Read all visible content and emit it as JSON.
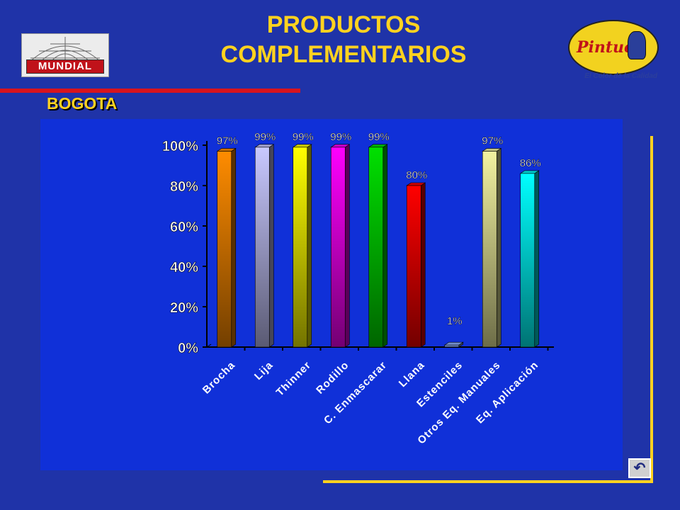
{
  "header": {
    "title_line1": "PRODUCTOS",
    "title_line2": "COMPLEMENTARIOS",
    "subtitle": "BOGOTA"
  },
  "logos": {
    "left": "MUNDIAL",
    "right": "Pintuco",
    "right_slogan": "El Color de la Calidad"
  },
  "nav": {
    "return_icon": "return-arrow-icon"
  },
  "colors": {
    "background": "#1f33a8",
    "panel": "#1030d8",
    "title": "#ffd21f",
    "accent_red": "#d8141e"
  },
  "chart_data": {
    "type": "bar",
    "categories": [
      "Brocha",
      "Lija",
      "Thinner",
      "Rodillo",
      "C. Enmascarar",
      "Llana",
      "Estenciles",
      "Otros Eq. Manuales",
      "Eq. Aplicación"
    ],
    "values": [
      0.97,
      0.99,
      0.99,
      0.99,
      0.99,
      0.8,
      0.01,
      0.97,
      0.86
    ],
    "value_labels": [
      "97%",
      "99%",
      "99%",
      "99%",
      "99%",
      "80%",
      "1%",
      "97%",
      "86%"
    ],
    "bar_colors": [
      "#ff8c00",
      "#c8c8ff",
      "#ffff00",
      "#ff00ff",
      "#00e000",
      "#ff0000",
      "#8fb0ff",
      "#f2f2a0",
      "#00ffff"
    ],
    "ylim": [
      0,
      1
    ],
    "yticks": [
      "0%",
      "20%",
      "40%",
      "60%",
      "80%",
      "100%"
    ],
    "three_d": true,
    "grid": false,
    "legend": "none"
  }
}
